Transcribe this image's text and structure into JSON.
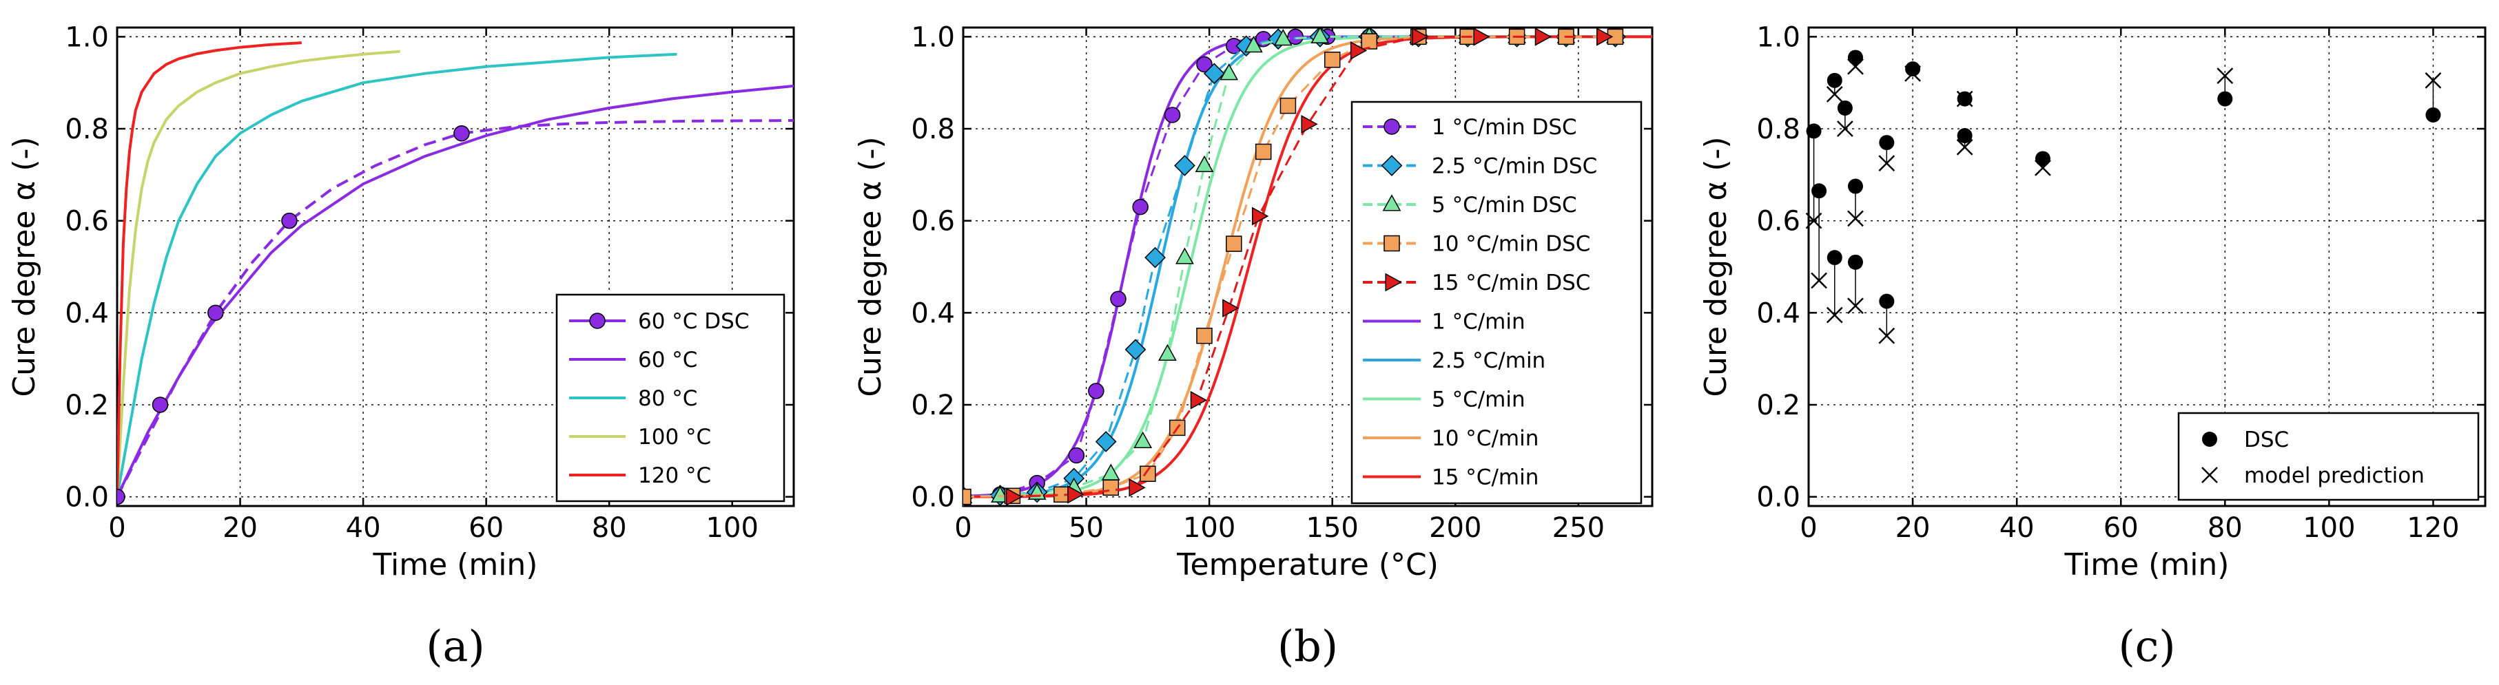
{
  "chart_data": [
    {
      "type": "line",
      "panel_label": "(a)",
      "xlabel": "Time (min)",
      "ylabel": "Cure degree α (-)",
      "xlim": [
        0,
        110
      ],
      "ylim": [
        -0.02,
        1.02
      ],
      "xticks": [
        "0",
        "20",
        "40",
        "60",
        "80",
        "100"
      ],
      "yticks": [
        "0.0",
        "0.2",
        "0.4",
        "0.6",
        "0.8",
        "1.0"
      ],
      "grid": true,
      "legend_position": "lower-right",
      "dsc_series": [
        {
          "name": "60 °C DSC",
          "color": "#8a2be2",
          "marker": "circle",
          "x": [
            0,
            7,
            16,
            28,
            56
          ],
          "y": [
            0.0,
            0.2,
            0.4,
            0.6,
            0.79
          ]
        }
      ],
      "dashed_fit": {
        "color": "#8a2be2",
        "x": [
          0,
          5,
          10,
          16,
          22,
          28,
          35,
          42,
          50,
          56,
          65,
          75,
          85,
          95,
          110
        ],
        "y": [
          0.0,
          0.13,
          0.26,
          0.4,
          0.51,
          0.6,
          0.67,
          0.72,
          0.765,
          0.79,
          0.805,
          0.812,
          0.815,
          0.817,
          0.818
        ]
      },
      "series": [
        {
          "name": "60 °C",
          "color": "#8a2be2",
          "x": [
            0,
            5,
            10,
            15,
            20,
            25,
            30,
            40,
            50,
            60,
            70,
            80,
            90,
            100,
            110
          ],
          "y": [
            0.0,
            0.14,
            0.26,
            0.37,
            0.45,
            0.53,
            0.59,
            0.68,
            0.74,
            0.785,
            0.82,
            0.845,
            0.865,
            0.88,
            0.893
          ]
        },
        {
          "name": "80 °C",
          "color": "#2ec4c4",
          "x": [
            0,
            2,
            4,
            6,
            8,
            10,
            13,
            16,
            20,
            25,
            30,
            40,
            50,
            60,
            70,
            80,
            91
          ],
          "y": [
            0.0,
            0.15,
            0.3,
            0.42,
            0.52,
            0.6,
            0.68,
            0.74,
            0.79,
            0.83,
            0.86,
            0.9,
            0.92,
            0.935,
            0.945,
            0.955,
            0.962
          ]
        },
        {
          "name": "100 °C",
          "color": "#c6d46b",
          "x": [
            0,
            1,
            2,
            3,
            4,
            5,
            6,
            8,
            10,
            13,
            16,
            20,
            25,
            30,
            35,
            40,
            46
          ],
          "y": [
            0.0,
            0.24,
            0.45,
            0.58,
            0.67,
            0.73,
            0.77,
            0.82,
            0.85,
            0.88,
            0.9,
            0.92,
            0.935,
            0.947,
            0.955,
            0.962,
            0.968
          ]
        },
        {
          "name": "120 °C",
          "color": "#ee2222",
          "x": [
            0,
            0.5,
            1,
            1.5,
            2,
            2.5,
            3,
            4,
            5,
            6,
            8,
            10,
            13,
            16,
            20,
            25,
            30
          ],
          "y": [
            0.0,
            0.32,
            0.55,
            0.67,
            0.75,
            0.8,
            0.84,
            0.88,
            0.9,
            0.92,
            0.94,
            0.952,
            0.963,
            0.97,
            0.977,
            0.983,
            0.987
          ]
        }
      ]
    },
    {
      "type": "line",
      "panel_label": "(b)",
      "xlabel": "Temperature (°C)",
      "ylabel": "Cure degree α (-)",
      "xlim": [
        0,
        280
      ],
      "ylim": [
        -0.02,
        1.02
      ],
      "xticks": [
        "0",
        "50",
        "100",
        "150",
        "200",
        "250"
      ],
      "yticks": [
        "0.0",
        "0.2",
        "0.4",
        "0.6",
        "0.8",
        "1.0"
      ],
      "grid": true,
      "legend_position": "lower-right",
      "dsc_series": [
        {
          "name": "1 °C/min DSC",
          "color": "#8a2be2",
          "marker": "circle",
          "x": [
            0,
            15,
            30,
            46,
            54,
            63,
            72,
            85,
            98,
            110,
            122,
            135,
            148,
            165,
            185,
            205,
            225,
            245,
            265
          ],
          "y": [
            0.0,
            0.005,
            0.03,
            0.09,
            0.23,
            0.43,
            0.63,
            0.83,
            0.94,
            0.98,
            0.995,
            1.0,
            1.0,
            1.0,
            1.0,
            1.0,
            1.0,
            1.0,
            1.0
          ]
        },
        {
          "name": "2.5 °C/min DSC",
          "color": "#29a9e0",
          "marker": "diamond",
          "x": [
            0,
            15,
            30,
            45,
            58,
            70,
            78,
            90,
            102,
            115,
            128,
            145,
            165,
            185,
            205,
            225,
            245,
            265
          ],
          "y": [
            0.0,
            0.003,
            0.01,
            0.04,
            0.12,
            0.32,
            0.52,
            0.72,
            0.92,
            0.98,
            0.995,
            1.0,
            1.0,
            1.0,
            1.0,
            1.0,
            1.0,
            1.0
          ]
        },
        {
          "name": "5 °C/min DSC",
          "color": "#7de7a4",
          "marker": "triangle-up",
          "x": [
            0,
            15,
            30,
            45,
            60,
            73,
            83,
            90,
            98,
            108,
            118,
            130,
            145,
            165,
            185,
            205,
            225,
            245,
            265
          ],
          "y": [
            0.0,
            0.002,
            0.008,
            0.02,
            0.05,
            0.12,
            0.31,
            0.52,
            0.72,
            0.92,
            0.98,
            0.995,
            1.0,
            1.0,
            1.0,
            1.0,
            1.0,
            1.0,
            1.0
          ]
        },
        {
          "name": "10 °C/min DSC",
          "color": "#f2a15a",
          "marker": "square",
          "x": [
            0,
            20,
            40,
            60,
            75,
            87,
            98,
            110,
            122,
            132,
            150,
            165,
            185,
            205,
            225,
            245,
            265
          ],
          "y": [
            0.0,
            0.002,
            0.005,
            0.02,
            0.05,
            0.15,
            0.35,
            0.55,
            0.75,
            0.85,
            0.95,
            0.99,
            1.0,
            1.0,
            1.0,
            1.0,
            1.0
          ]
        },
        {
          "name": "15 °C/min DSC",
          "color": "#dd1c1c",
          "marker": "triangle-right",
          "x": [
            20,
            45,
            70,
            95,
            108,
            120,
            140,
            160,
            185,
            210,
            235,
            260
          ],
          "y": [
            0.0,
            0.005,
            0.02,
            0.21,
            0.41,
            0.61,
            0.81,
            0.97,
            1.0,
            1.0,
            1.0,
            1.0
          ]
        }
      ],
      "series": [
        {
          "name": "1 °C/min",
          "color": "#8a2be2",
          "center": 66,
          "width": 10
        },
        {
          "name": "2.5 °C/min",
          "color": "#29a9e0",
          "center": 80,
          "width": 10.5
        },
        {
          "name": "5 °C/min",
          "color": "#7de7a4",
          "center": 92,
          "width": 11
        },
        {
          "name": "10 °C/min",
          "color": "#f2a15a",
          "center": 106,
          "width": 12
        },
        {
          "name": "15 °C/min",
          "color": "#ee2222",
          "center": 116,
          "width": 12.5
        }
      ]
    },
    {
      "type": "scatter",
      "panel_label": "(c)",
      "xlabel": "Time (min)",
      "ylabel": "Cure degree α (-)",
      "xlim": [
        0,
        130
      ],
      "ylim": [
        -0.02,
        1.02
      ],
      "xticks": [
        "0",
        "20",
        "40",
        "60",
        "80",
        "100",
        "120"
      ],
      "yticks": [
        "0.0",
        "0.2",
        "0.4",
        "0.6",
        "0.8",
        "1.0"
      ],
      "grid": true,
      "legend_position": "lower-right",
      "series": [
        {
          "name": "DSC",
          "marker": "filled-circle",
          "x": [
            1,
            2,
            5,
            5,
            7,
            9,
            9,
            15,
            15,
            20,
            30,
            30,
            45,
            80,
            120
          ],
          "y": [
            0.795,
            0.665,
            0.905,
            0.52,
            0.845,
            0.955,
            0.51,
            0.77,
            0.425,
            0.93,
            0.865,
            0.785,
            0.735,
            0.865,
            0.83
          ]
        },
        {
          "name": "model prediction",
          "marker": "x",
          "x": [
            1,
            2,
            5,
            5,
            7,
            9,
            9,
            15,
            15,
            20,
            30,
            30,
            45,
            80,
            120
          ],
          "y": [
            0.6,
            0.47,
            0.875,
            0.395,
            0.8,
            0.935,
            0.415,
            0.725,
            0.35,
            0.92,
            0.865,
            0.76,
            0.715,
            0.915,
            0.905
          ]
        }
      ],
      "extra_points": [
        {
          "x": 9,
          "y": 0.675,
          "mx": 9,
          "my": 0.605
        }
      ]
    }
  ]
}
